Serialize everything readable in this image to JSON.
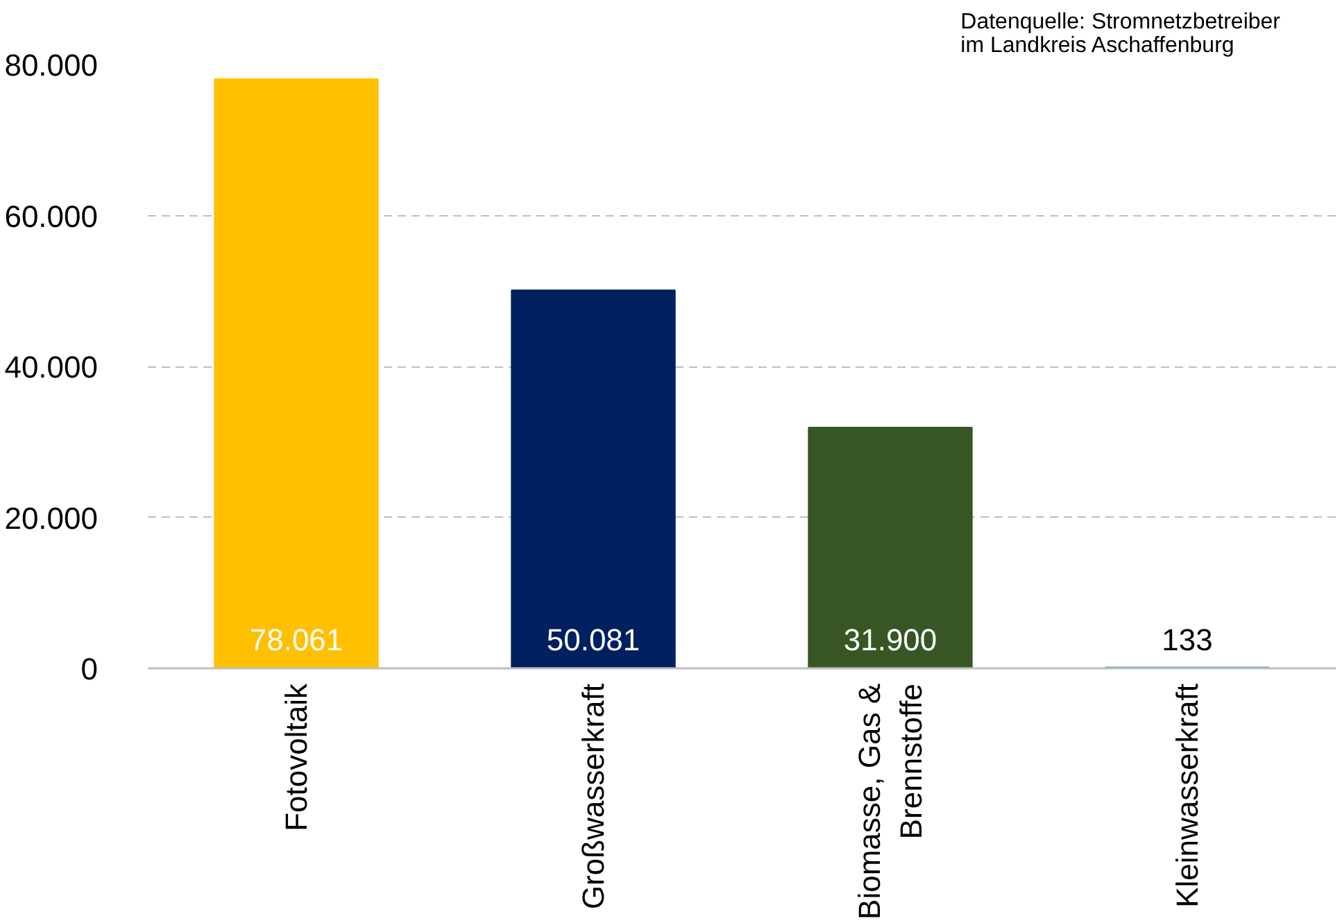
{
  "chart_data": {
    "type": "bar",
    "categories": [
      "Fotovoltaik",
      "Großwasserkraft",
      "Biomasse, Gas &\nBrennstoffe",
      "Kleinwasserkraft"
    ],
    "values": [
      78061,
      50081,
      31900,
      133
    ],
    "colors": [
      "#ffc000",
      "#002060",
      "#375623",
      "#4bacc6"
    ],
    "value_labels": [
      "78.061",
      "50.081",
      "31.900",
      "133"
    ],
    "ylim": [
      0,
      80000
    ],
    "yticks": [
      {
        "value": 0,
        "label": "0"
      },
      {
        "value": 20000,
        "label": "20.000"
      },
      {
        "value": 40000,
        "label": "40.000"
      },
      {
        "value": 60000,
        "label": "60.000"
      },
      {
        "value": 80000,
        "label": "80.000"
      }
    ],
    "grid": "y",
    "annotations": [
      "Datenquelle: Stromnetzbetreiber\nim Landkreis Aschaffenburg"
    ]
  }
}
